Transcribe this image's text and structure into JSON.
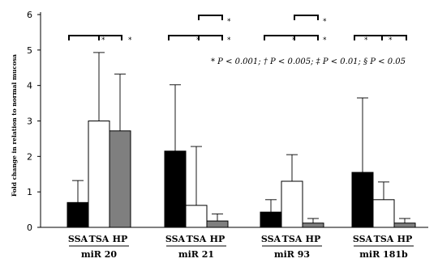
{
  "chart_data": {
    "type": "bar",
    "title": "",
    "xlabel": "",
    "ylabel": "Fold change in relation to normal mucosa",
    "ylim": [
      0,
      6
    ],
    "yticks": [
      "0",
      "1",
      "2",
      "3",
      "4",
      "5",
      "6"
    ],
    "grid": false,
    "groups": [
      {
        "label": "miR 20",
        "bars": [
          {
            "category": "SSA",
            "value": 0.7,
            "error": 0.62
          },
          {
            "category": "TSA",
            "value": 3.0,
            "error": 1.93
          },
          {
            "category": "HP",
            "value": 2.72,
            "error": 1.6
          }
        ]
      },
      {
        "label": "miR 21",
        "bars": [
          {
            "category": "SSA",
            "value": 2.15,
            "error": 1.87
          },
          {
            "category": "TSA",
            "value": 0.62,
            "error": 1.66
          },
          {
            "category": "HP",
            "value": 0.18,
            "error": 0.2
          }
        ]
      },
      {
        "label": "miR 93",
        "bars": [
          {
            "category": "SSA",
            "value": 0.43,
            "error": 0.35
          },
          {
            "category": "TSA",
            "value": 1.3,
            "error": 0.75
          },
          {
            "category": "HP",
            "value": 0.12,
            "error": 0.13
          }
        ]
      },
      {
        "label": "miR 181b",
        "bars": [
          {
            "category": "SSA",
            "value": 1.55,
            "error": 2.1
          },
          {
            "category": "TSA",
            "value": 0.78,
            "error": 0.5
          },
          {
            "category": "HP",
            "value": 0.12,
            "error": 0.13
          }
        ]
      }
    ],
    "bar_colors": {
      "SSA": "#000000",
      "TSA": "#ffffff",
      "HP": "#7f7f7f"
    },
    "significance_marker": "*",
    "legend_note": "* P < 0.001; † P < 0.005; ‡ P < 0.01; §  P < 0.05"
  }
}
